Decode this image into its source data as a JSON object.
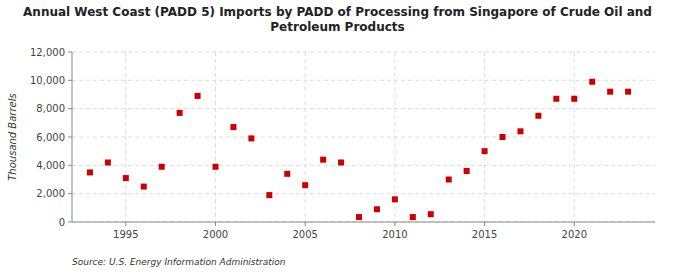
{
  "chart_data": {
    "type": "scatter",
    "title": "Annual West Coast (PADD 5) Imports by PADD of Processing from Singapore of Crude Oil and\nPetroleum Products",
    "ylabel": "Thousand Barrels",
    "annotations": [
      "Source: U.S. Energy Information Administration"
    ],
    "x": [
      1993,
      1994,
      1995,
      1996,
      1997,
      1998,
      1999,
      2000,
      2001,
      2002,
      2003,
      2004,
      2005,
      2006,
      2007,
      2008,
      2009,
      2010,
      2011,
      2012,
      2013,
      2014,
      2015,
      2016,
      2017,
      2018,
      2019,
      2020,
      2021,
      2022,
      2023
    ],
    "values": [
      3500,
      4200,
      3100,
      2500,
      3900,
      7700,
      8900,
      3900,
      6700,
      5900,
      1900,
      3400,
      2600,
      4400,
      4200,
      350,
      900,
      1600,
      350,
      550,
      3000,
      3600,
      5000,
      6000,
      6400,
      7500,
      8700,
      8700,
      9900,
      9200,
      9200
    ],
    "color": "#cc0000",
    "marker": "square",
    "xlim": [
      1992,
      2024.5
    ],
    "xticks": [
      1995,
      2000,
      2005,
      2010,
      2015,
      2020
    ],
    "ylim": [
      0,
      12000
    ],
    "yticks": [
      0,
      {
        "value": 2000,
        "label": "2,000"
      },
      {
        "value": 4000,
        "label": "4,000"
      },
      {
        "value": 6000,
        "label": "6,000"
      },
      {
        "value": 8000,
        "label": "8,000"
      },
      {
        "value": 10000,
        "label": "10,000"
      },
      {
        "value": 12000,
        "label": "12,000"
      }
    ],
    "grid": true
  }
}
